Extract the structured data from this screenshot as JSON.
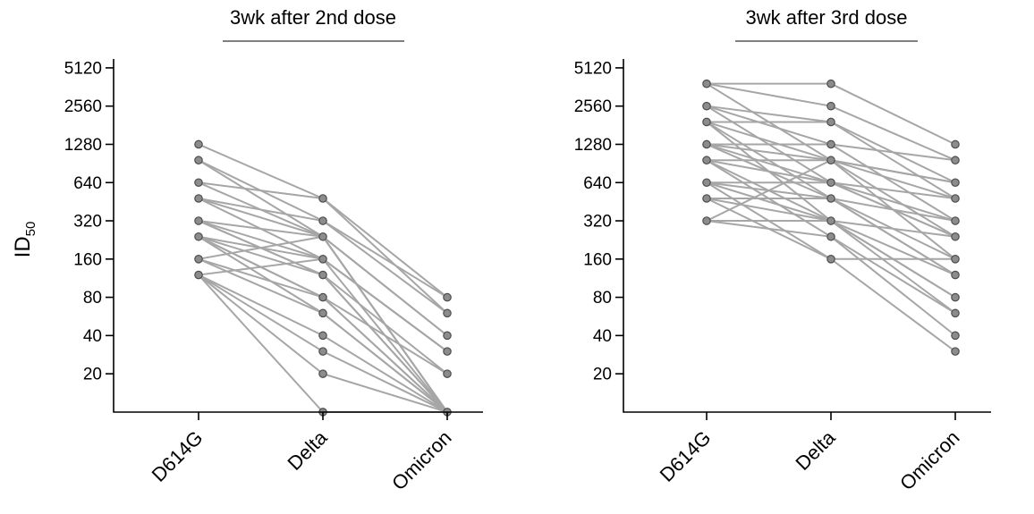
{
  "ylabel_main": "ID",
  "ylabel_sub": "50",
  "colors": {
    "line": "#a6a6a6",
    "point_fill": "#8c8c8c",
    "point_stroke": "#4d4d4d",
    "axis": "#000000"
  },
  "chart_data": [
    {
      "type": "line",
      "title": "3wk after 2nd dose",
      "categories": [
        "D614G",
        "Delta",
        "Omicron"
      ],
      "yscale": "log2",
      "yticks": [
        "20",
        "40",
        "80",
        "160",
        "320",
        "640",
        "1280",
        "2560",
        "5120"
      ],
      "ylim_log2": [
        3.32,
        12.32
      ],
      "floor_value": 10,
      "series": [
        {
          "values": [
            1280,
            480,
            80
          ]
        },
        {
          "values": [
            960,
            320,
            60
          ]
        },
        {
          "values": [
            640,
            240,
            40
          ]
        },
        {
          "values": [
            480,
            160,
            30
          ]
        },
        {
          "values": [
            320,
            120,
            20
          ]
        },
        {
          "values": [
            240,
            80,
            10
          ]
        },
        {
          "values": [
            160,
            60,
            10
          ]
        },
        {
          "values": [
            120,
            40,
            10
          ]
        },
        {
          "values": [
            120,
            30,
            10
          ]
        },
        {
          "values": [
            120,
            20,
            10
          ]
        },
        {
          "values": [
            120,
            10,
            10
          ]
        },
        {
          "values": [
            960,
            240,
            10
          ]
        },
        {
          "values": [
            640,
            480,
            60
          ]
        },
        {
          "values": [
            480,
            320,
            80
          ]
        },
        {
          "values": [
            320,
            240,
            40
          ]
        },
        {
          "values": [
            320,
            120,
            10
          ]
        },
        {
          "values": [
            240,
            160,
            30
          ]
        },
        {
          "values": [
            240,
            80,
            20
          ]
        },
        {
          "values": [
            240,
            120,
            10
          ]
        },
        {
          "values": [
            160,
            80,
            10
          ]
        },
        {
          "values": [
            160,
            240,
            10
          ]
        },
        {
          "values": [
            120,
            160,
            10
          ]
        },
        {
          "values": [
            480,
            240,
            10
          ]
        },
        {
          "values": [
            320,
            160,
            30
          ]
        },
        {
          "values": [
            240,
            60,
            10
          ]
        }
      ]
    },
    {
      "type": "line",
      "title": "3wk after 3rd dose",
      "categories": [
        "D614G",
        "Delta",
        "Omicron"
      ],
      "yscale": "log2",
      "yticks": [
        "20",
        "40",
        "80",
        "160",
        "320",
        "640",
        "1280",
        "2560",
        "5120"
      ],
      "ylim_log2": [
        3.32,
        12.32
      ],
      "floor_value": 10,
      "series": [
        {
          "values": [
            3840,
            3840,
            1280
          ]
        },
        {
          "values": [
            3840,
            2560,
            960
          ]
        },
        {
          "values": [
            3840,
            960,
            640
          ]
        },
        {
          "values": [
            2560,
            1920,
            480
          ]
        },
        {
          "values": [
            2560,
            1280,
            320
          ]
        },
        {
          "values": [
            2560,
            640,
            240
          ]
        },
        {
          "values": [
            1920,
            1920,
            640
          ]
        },
        {
          "values": [
            1920,
            960,
            160
          ]
        },
        {
          "values": [
            1920,
            480,
            120
          ]
        },
        {
          "values": [
            1920,
            320,
            80
          ]
        },
        {
          "values": [
            1280,
            1280,
            960
          ]
        },
        {
          "values": [
            1280,
            960,
            480
          ]
        },
        {
          "values": [
            1280,
            640,
            320
          ]
        },
        {
          "values": [
            1280,
            480,
            120
          ]
        },
        {
          "values": [
            960,
            960,
            640
          ]
        },
        {
          "values": [
            960,
            640,
            240
          ]
        },
        {
          "values": [
            960,
            320,
            60
          ]
        },
        {
          "values": [
            960,
            240,
            40
          ]
        },
        {
          "values": [
            640,
            640,
            480
          ]
        },
        {
          "values": [
            640,
            480,
            160
          ]
        },
        {
          "values": [
            640,
            320,
            80
          ]
        },
        {
          "values": [
            480,
            480,
            320
          ]
        },
        {
          "values": [
            480,
            320,
            120
          ]
        },
        {
          "values": [
            480,
            160,
            30
          ]
        },
        {
          "values": [
            320,
            320,
            240
          ]
        },
        {
          "values": [
            320,
            240,
            60
          ]
        },
        {
          "values": [
            640,
            160,
            160
          ]
        },
        {
          "values": [
            320,
            960,
            240
          ]
        }
      ]
    }
  ]
}
